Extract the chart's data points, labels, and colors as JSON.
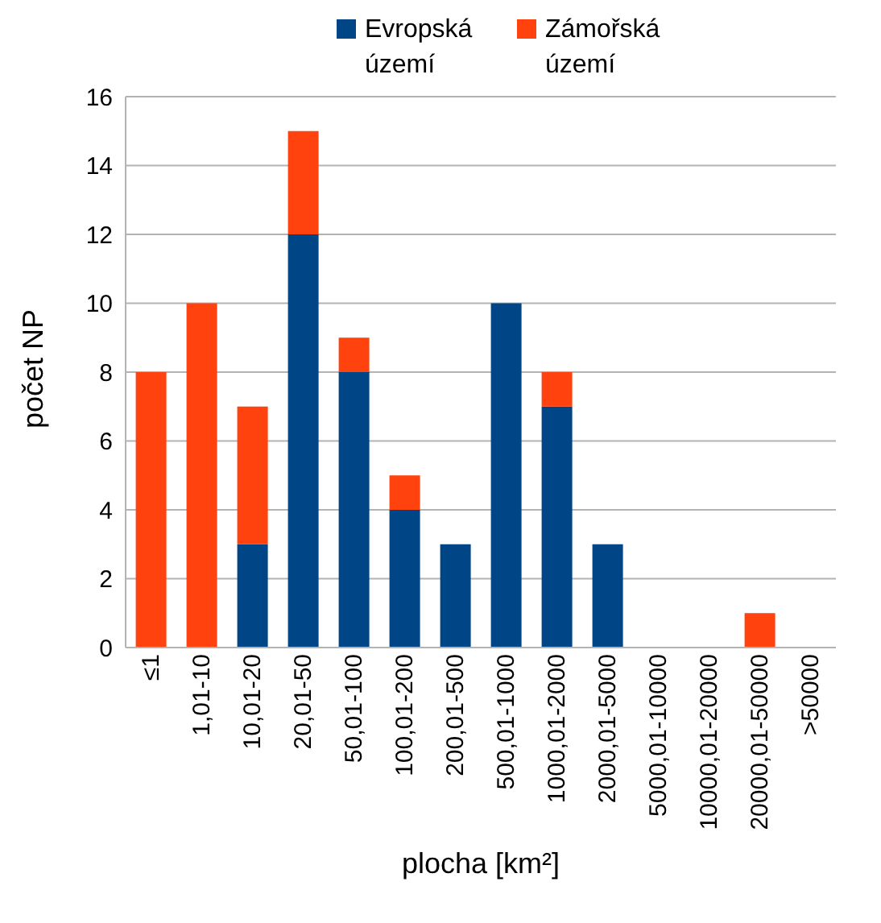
{
  "chart_data": {
    "type": "bar",
    "stacked": true,
    "xlabel": "plocha [km²]",
    "ylabel": "počet NP",
    "categories": [
      "≤1",
      "1,01-10",
      "10,01-20",
      "20,01-50",
      "50,01-100",
      "100,01-200",
      "200,01-500",
      "500,01-1000",
      "1000,01-2000",
      "2000,01-5000",
      "5000,01-10000",
      "10000,01-20000",
      "20000,01-50000",
      ">50000"
    ],
    "series": [
      {
        "name": "Evropská území",
        "color": "#004586",
        "values": [
          0,
          0,
          3,
          12,
          8,
          4,
          3,
          10,
          7,
          3,
          0,
          0,
          0,
          0
        ]
      },
      {
        "name": "Zámořská území",
        "color": "#ff420e",
        "values": [
          8,
          10,
          4,
          3,
          1,
          1,
          0,
          0,
          1,
          0,
          0,
          0,
          1,
          0
        ]
      }
    ],
    "ylim": [
      0,
      16
    ],
    "yticks": [
      0,
      2,
      4,
      6,
      8,
      10,
      12,
      14,
      16
    ],
    "grid": "y",
    "legend": "top"
  }
}
